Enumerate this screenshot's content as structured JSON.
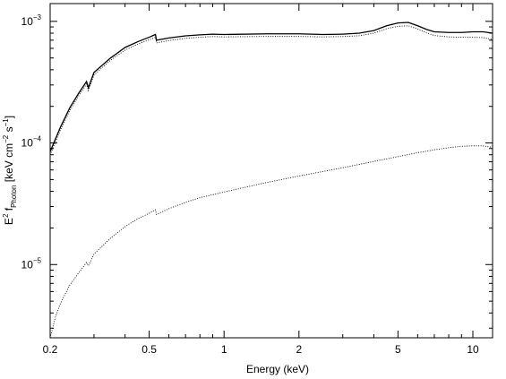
{
  "chart_data": {
    "type": "line",
    "title": "",
    "xlabel": "Energy (keV)",
    "ylabel": {
      "base": "E",
      "sup1": "2",
      "mid": " f",
      "sub": "Photon",
      "bracket_open": " [keV cm",
      "sup2": "−2",
      "mid2": " s",
      "sup3": "−1",
      "bracket_close": "]"
    },
    "xscale": "log",
    "yscale": "log",
    "xlim": [
      0.2,
      12
    ],
    "ylim": [
      2.5e-06,
      0.0014
    ],
    "x_ticks": [
      {
        "value": 0.2,
        "label": "0.2"
      },
      {
        "value": 0.5,
        "label": "0.5"
      },
      {
        "value": 1,
        "label": "1"
      },
      {
        "value": 2,
        "label": "2"
      },
      {
        "value": 5,
        "label": "5"
      },
      {
        "value": 10,
        "label": "10"
      }
    ],
    "y_ticks": [
      {
        "value": 1e-05,
        "mantissa": "10",
        "exponent": "−5"
      },
      {
        "value": 0.0001,
        "mantissa": "10",
        "exponent": "−4"
      },
      {
        "value": 0.001,
        "mantissa": "10",
        "exponent": "−3"
      }
    ],
    "grid": false,
    "series": [
      {
        "style": "solid",
        "x": [
          0.2,
          0.22,
          0.24,
          0.26,
          0.28,
          0.285,
          0.3,
          0.35,
          0.4,
          0.45,
          0.5,
          0.53,
          0.535,
          0.6,
          0.7,
          0.8,
          0.9,
          1.0,
          1.5,
          2.0,
          2.5,
          3.0,
          3.5,
          4.0,
          4.5,
          5.0,
          5.5,
          6.0,
          6.5,
          7.0,
          8.0,
          9.0,
          10.0,
          11.0,
          12.0
        ],
        "y": [
          8.5e-05,
          0.000135,
          0.000195,
          0.000255,
          0.00032,
          0.000285,
          0.00038,
          0.0005,
          0.00061,
          0.00068,
          0.00074,
          0.00078,
          0.0007,
          0.00073,
          0.00076,
          0.000775,
          0.000785,
          0.00078,
          0.00079,
          0.00079,
          0.00078,
          0.000785,
          0.0008,
          0.00084,
          0.00092,
          0.00097,
          0.00098,
          0.00092,
          0.00086,
          0.00082,
          0.00081,
          0.00081,
          0.00082,
          0.00082,
          0.0008
        ]
      },
      {
        "style": "dotted",
        "x": [
          0.2,
          0.22,
          0.24,
          0.26,
          0.28,
          0.285,
          0.3,
          0.35,
          0.4,
          0.45,
          0.5,
          0.53,
          0.535,
          0.6,
          0.7,
          0.8,
          0.9,
          1.0,
          1.5,
          2.0,
          2.5,
          3.0,
          3.5,
          4.0,
          4.5,
          5.0,
          5.5,
          6.0,
          6.5,
          7.0,
          8.0,
          9.0,
          10.0,
          11.0,
          12.0
        ],
        "y": [
          8e-05,
          0.000128,
          0.000185,
          0.000243,
          0.000305,
          0.00027,
          0.000362,
          0.00048,
          0.00058,
          0.00065,
          0.000705,
          0.00074,
          0.000665,
          0.000695,
          0.000725,
          0.00074,
          0.00075,
          0.000745,
          0.000752,
          0.000752,
          0.000745,
          0.00075,
          0.000762,
          0.0008,
          0.00087,
          0.00091,
          0.00092,
          0.000865,
          0.000805,
          0.000765,
          0.000745,
          0.00074,
          0.00074,
          0.000735,
          0.00071
        ]
      },
      {
        "style": "dotted",
        "x": [
          0.2,
          0.21,
          0.22,
          0.24,
          0.26,
          0.28,
          0.285,
          0.3,
          0.35,
          0.4,
          0.45,
          0.5,
          0.53,
          0.535,
          0.6,
          0.7,
          0.8,
          1.0,
          1.5,
          2.0,
          3.0,
          4.0,
          5.0,
          6.0,
          7.0,
          8.0,
          9.0,
          10.0,
          11.0,
          12.0
        ],
        "y": [
          2.5e-06,
          3.7e-06,
          4.8e-06,
          6.8e-06,
          8.5e-06,
          1.04e-05,
          9.8e-06,
          1.22e-05,
          1.65e-05,
          2.05e-05,
          2.38e-05,
          2.64e-05,
          2.82e-05,
          2.58e-05,
          2.88e-05,
          3.25e-05,
          3.55e-05,
          3.95e-05,
          4.75e-05,
          5.35e-05,
          6.25e-05,
          7.05e-05,
          7.72e-05,
          8.32e-05,
          8.78e-05,
          9.15e-05,
          9.38e-05,
          9.48e-05,
          9.45e-05,
          9.2e-05
        ]
      }
    ]
  }
}
